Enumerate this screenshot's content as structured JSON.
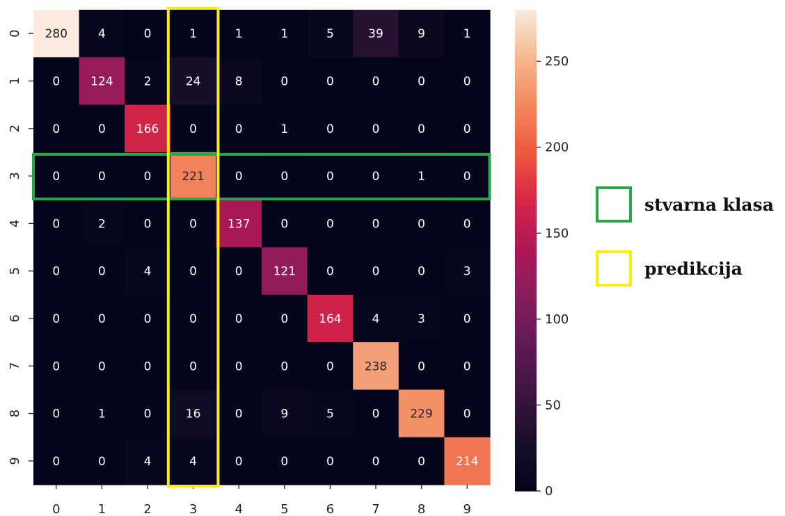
{
  "chart_data": {
    "type": "heatmap",
    "title": "",
    "xlabel": "",
    "ylabel": "",
    "x_categories": [
      "0",
      "1",
      "2",
      "3",
      "4",
      "5",
      "6",
      "7",
      "8",
      "9"
    ],
    "y_categories": [
      "0",
      "1",
      "2",
      "3",
      "4",
      "5",
      "6",
      "7",
      "8",
      "9"
    ],
    "matrix": [
      [
        280,
        4,
        0,
        1,
        1,
        1,
        5,
        39,
        9,
        1
      ],
      [
        0,
        124,
        2,
        24,
        8,
        0,
        0,
        0,
        0,
        0
      ],
      [
        0,
        0,
        166,
        0,
        0,
        1,
        0,
        0,
        0,
        0
      ],
      [
        0,
        0,
        0,
        221,
        0,
        0,
        0,
        0,
        1,
        0
      ],
      [
        0,
        2,
        0,
        0,
        137,
        0,
        0,
        0,
        0,
        0
      ],
      [
        0,
        0,
        4,
        0,
        0,
        121,
        0,
        0,
        0,
        3
      ],
      [
        0,
        0,
        0,
        0,
        0,
        0,
        164,
        4,
        3,
        0
      ],
      [
        0,
        0,
        0,
        0,
        0,
        0,
        0,
        238,
        0,
        0
      ],
      [
        0,
        1,
        0,
        16,
        0,
        9,
        5,
        0,
        229,
        0
      ],
      [
        0,
        0,
        4,
        4,
        0,
        0,
        0,
        0,
        0,
        214
      ]
    ],
    "colormap": "rocket",
    "value_range": [
      0,
      280
    ],
    "colorbar_ticks": [
      0,
      50,
      100,
      150,
      200,
      250
    ],
    "highlights": [
      {
        "kind": "row",
        "index": 3,
        "color": "#22aa44"
      },
      {
        "kind": "column",
        "index": 3,
        "color": "#f5ee10"
      }
    ]
  },
  "legend": {
    "items": [
      {
        "label": "stvarna klasa",
        "color": "#22aa44"
      },
      {
        "label": "predikcija",
        "color": "#f5ee10"
      }
    ]
  }
}
